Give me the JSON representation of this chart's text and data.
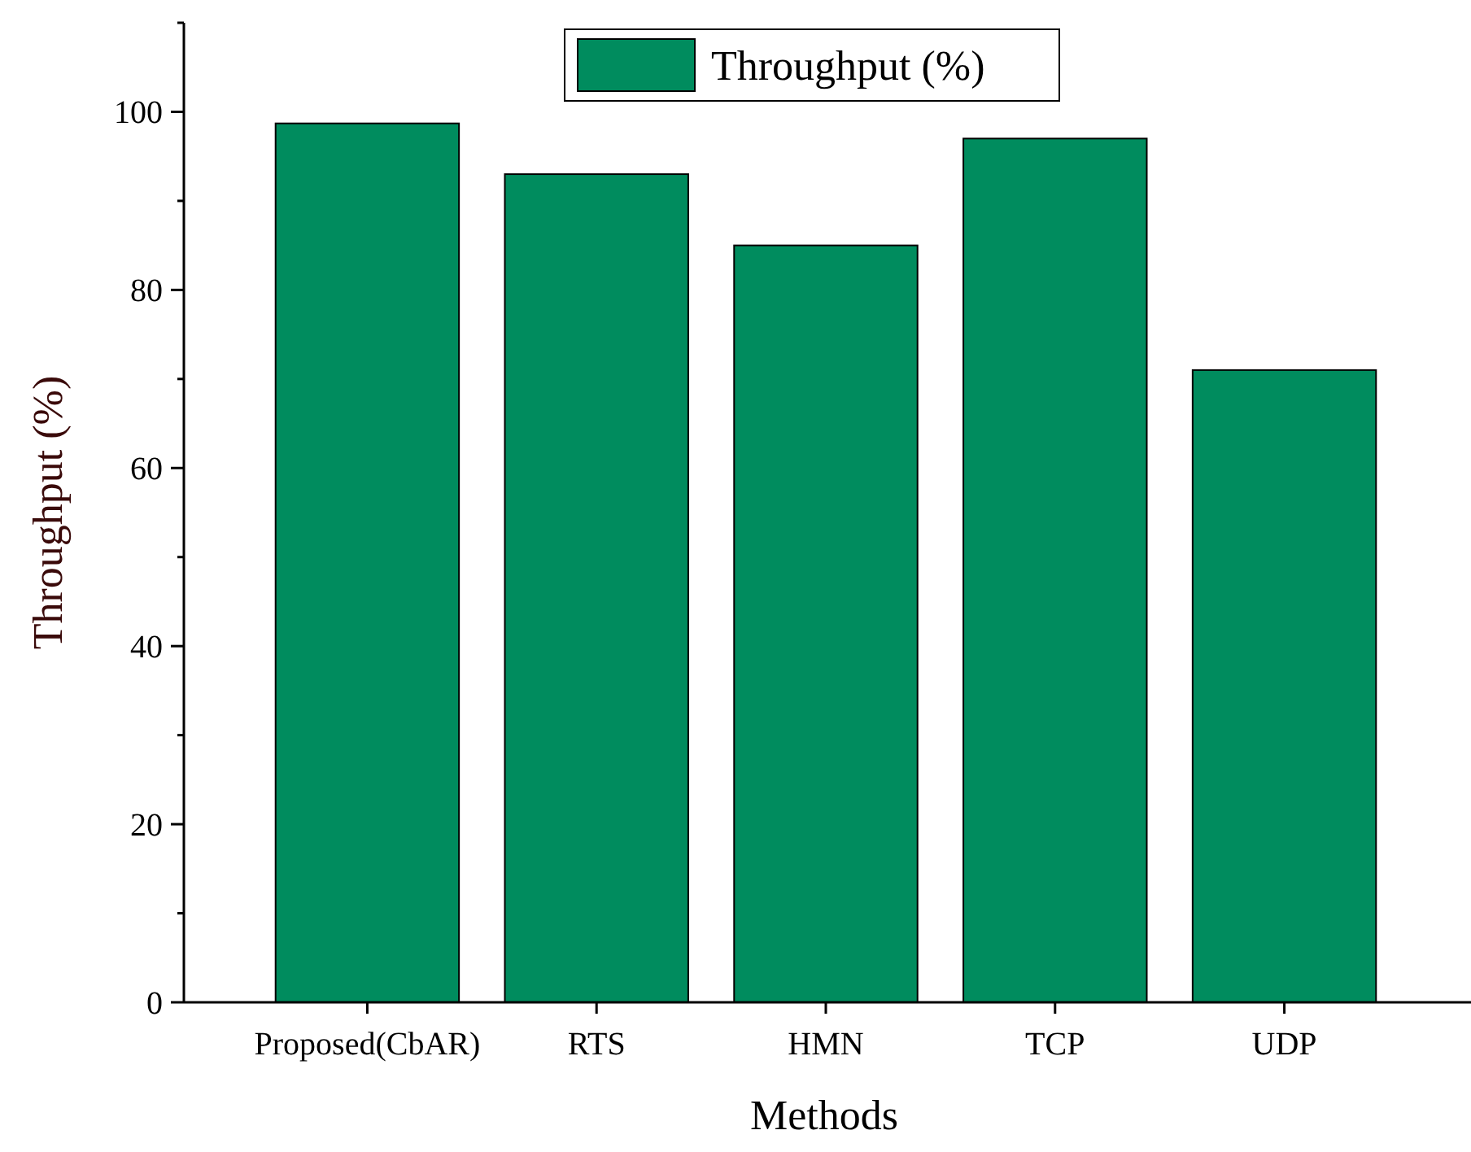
{
  "chart_data": {
    "type": "bar",
    "xlabel": "Methods",
    "ylabel": "Throughput (%)",
    "categories": [
      "Proposed(CbAR)",
      "RTS",
      "HMN",
      "TCP",
      "UDP"
    ],
    "series": [
      {
        "name": "Throughput (%)",
        "color": "#008c5e",
        "values": [
          98.7,
          93,
          85,
          97,
          71
        ]
      }
    ],
    "ylim": [
      0,
      110
    ],
    "yticks": [
      0,
      {
        "value": 10,
        "label": null
      },
      20,
      {
        "value": 30,
        "label": null
      },
      40,
      {
        "value": 50,
        "label": null
      },
      60,
      {
        "value": 70,
        "label": null
      },
      80,
      {
        "value": 90,
        "label": null
      },
      100,
      {
        "value": 110,
        "label": null
      }
    ],
    "grid": false,
    "legend": "top"
  }
}
